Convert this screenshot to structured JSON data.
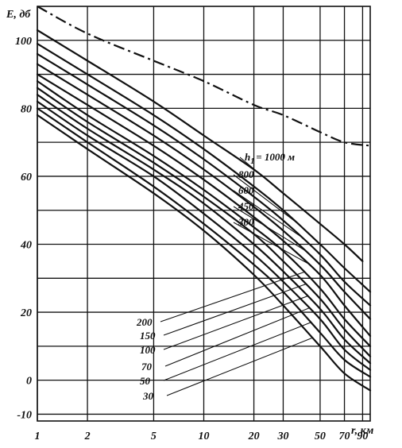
{
  "chart_data": {
    "type": "line",
    "xlabel": "r, км",
    "ylabel": "E, дб",
    "x_scale": "log",
    "xlim": [
      1,
      100
    ],
    "ylim": [
      -12,
      110
    ],
    "x_ticks": [
      "1",
      "2",
      "5",
      "10",
      "20",
      "30",
      "50",
      "70",
      "90"
    ],
    "y_ticks": [
      "100",
      "80",
      "60",
      "40",
      "20",
      "0",
      "-10"
    ],
    "grid": true,
    "series_label_prefix": "h",
    "series_label_subscript": "1",
    "series": [
      {
        "name": "= 1000 м",
        "label": "= 1000 м",
        "style": "solid",
        "x": [
          1,
          2,
          5,
          10,
          20,
          30,
          50,
          70,
          90
        ],
        "y": [
          103,
          94,
          82,
          72,
          62,
          55,
          46,
          40,
          35
        ]
      },
      {
        "name": "800",
        "label": "800",
        "style": "solid",
        "x": [
          1,
          2,
          5,
          10,
          20,
          30,
          50,
          70,
          100
        ],
        "y": [
          99,
          90,
          78,
          68,
          57,
          50,
          40,
          33,
          26
        ]
      },
      {
        "name": "600",
        "label": "600",
        "style": "solid",
        "x": [
          1,
          2,
          5,
          10,
          20,
          30,
          50,
          70,
          100
        ],
        "y": [
          96,
          87,
          75,
          65,
          54,
          47,
          37,
          29,
          22
        ]
      },
      {
        "name": "450",
        "label": "450",
        "style": "solid",
        "x": [
          1,
          2,
          5,
          10,
          20,
          30,
          50,
          70,
          100
        ],
        "y": [
          93,
          84,
          72,
          62,
          51,
          44,
          34,
          26,
          18
        ]
      },
      {
        "name": "300",
        "label": "300",
        "style": "solid",
        "x": [
          1,
          2,
          5,
          10,
          20,
          30,
          50,
          70,
          100
        ],
        "y": [
          90,
          81,
          69,
          59,
          48,
          41,
          31,
          22,
          13
        ]
      },
      {
        "name": "200",
        "label": "200",
        "style": "solid",
        "x": [
          1,
          2,
          5,
          10,
          20,
          30,
          50,
          70,
          100
        ],
        "y": [
          88,
          78,
          66,
          56,
          45,
          38,
          27,
          18,
          10
        ]
      },
      {
        "name": "150",
        "label": "150",
        "style": "solid",
        "x": [
          1,
          2,
          5,
          10,
          20,
          30,
          50,
          70,
          100
        ],
        "y": [
          86,
          76,
          64,
          54,
          43,
          35,
          24,
          15,
          7
        ]
      },
      {
        "name": "100",
        "label": "100",
        "style": "solid",
        "x": [
          1,
          2,
          5,
          10,
          20,
          30,
          50,
          70,
          100
        ],
        "y": [
          84,
          74,
          62,
          52,
          40,
          32,
          21,
          12,
          5
        ]
      },
      {
        "name": "70",
        "label": "70",
        "style": "solid",
        "x": [
          1,
          2,
          5,
          10,
          20,
          30,
          50,
          70,
          100
        ],
        "y": [
          82,
          72,
          60,
          49,
          37,
          29,
          18,
          9,
          3
        ]
      },
      {
        "name": "50",
        "label": "50",
        "style": "solid",
        "x": [
          1,
          2,
          5,
          10,
          20,
          30,
          50,
          70,
          100
        ],
        "y": [
          80,
          70,
          57,
          46,
          34,
          26,
          14,
          6,
          1
        ]
      },
      {
        "name": "30",
        "label": "30",
        "style": "solid",
        "x": [
          1,
          2,
          5,
          10,
          20,
          30,
          50,
          70,
          100
        ],
        "y": [
          78,
          68,
          55,
          44,
          31,
          22,
          10,
          2,
          -3
        ]
      },
      {
        "name": "",
        "label": "",
        "style": "dash-dot",
        "x": [
          1,
          2,
          5,
          10,
          20,
          30,
          50,
          70,
          100
        ],
        "y": [
          110,
          102,
          94,
          88,
          81,
          78,
          73,
          70,
          69
        ]
      }
    ]
  }
}
